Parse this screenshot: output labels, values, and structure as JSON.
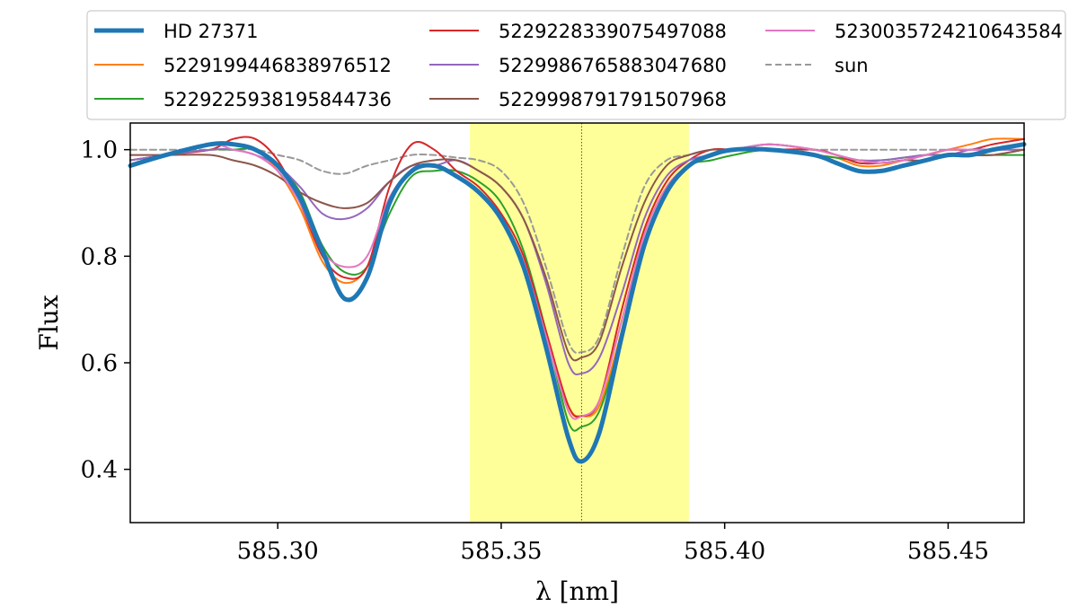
{
  "chart_data": {
    "type": "line",
    "title": "",
    "xlabel": "λ [nm]",
    "ylabel": "Flux",
    "xlim": [
      585.267,
      585.467
    ],
    "ylim": [
      0.3,
      1.05
    ],
    "xticks": [
      585.3,
      585.35,
      585.4,
      585.45
    ],
    "xtick_labels": [
      "585.30",
      "585.35",
      "585.40",
      "585.45"
    ],
    "yticks": [
      0.4,
      0.6,
      0.8,
      1.0
    ],
    "ytick_labels": [
      "0.4",
      "0.6",
      "0.8",
      "1.0"
    ],
    "grid": false,
    "legend_position": "top",
    "highlight_band": {
      "x0": 585.343,
      "x1": 585.392,
      "color": "#ffff99"
    },
    "center_line_x": 585.368,
    "x": [
      585.267,
      585.275,
      585.285,
      585.29,
      585.295,
      585.3,
      585.305,
      585.31,
      585.315,
      585.32,
      585.325,
      585.33,
      585.335,
      585.34,
      585.345,
      585.35,
      585.355,
      585.36,
      585.365,
      585.368,
      585.372,
      585.377,
      585.382,
      585.387,
      585.392,
      585.397,
      585.402,
      585.41,
      585.42,
      585.425,
      585.43,
      585.435,
      585.44,
      585.445,
      585.45,
      585.455,
      585.46,
      585.467
    ],
    "series": [
      {
        "name": "HD 27371",
        "color": "#1f77b4",
        "width": 5,
        "dash": "",
        "values": [
          0.97,
          0.99,
          1.01,
          1.01,
          1.0,
          0.97,
          0.91,
          0.81,
          0.72,
          0.76,
          0.9,
          0.96,
          0.97,
          0.95,
          0.92,
          0.87,
          0.78,
          0.63,
          0.46,
          0.415,
          0.47,
          0.65,
          0.82,
          0.92,
          0.97,
          0.99,
          1.0,
          1.0,
          0.99,
          0.975,
          0.96,
          0.96,
          0.97,
          0.98,
          0.99,
          0.99,
          1.0,
          1.01
        ]
      },
      {
        "name": "5229199446838976512",
        "color": "#ff7f0e",
        "width": 2,
        "dash": "",
        "values": [
          0.97,
          0.99,
          1.01,
          1.01,
          1.0,
          0.96,
          0.89,
          0.79,
          0.75,
          0.78,
          0.9,
          0.96,
          0.97,
          0.95,
          0.92,
          0.87,
          0.79,
          0.65,
          0.52,
          0.5,
          0.52,
          0.66,
          0.82,
          0.92,
          0.97,
          0.99,
          1.0,
          1.0,
          0.99,
          0.985,
          0.97,
          0.97,
          0.98,
          0.99,
          1.0,
          1.01,
          1.02,
          1.02
        ]
      },
      {
        "name": "5229225938195844736",
        "color": "#2ca02c",
        "width": 2,
        "dash": "",
        "values": [
          0.98,
          0.99,
          1.0,
          1.0,
          1.0,
          0.97,
          0.92,
          0.82,
          0.77,
          0.78,
          0.88,
          0.95,
          0.96,
          0.96,
          0.94,
          0.9,
          0.81,
          0.66,
          0.49,
          0.48,
          0.51,
          0.65,
          0.82,
          0.92,
          0.97,
          0.98,
          0.99,
          1.0,
          0.99,
          0.985,
          0.98,
          0.98,
          0.985,
          0.99,
          0.99,
          0.99,
          0.99,
          0.99
        ]
      },
      {
        "name": "5229228339075497088",
        "color": "#d62728",
        "width": 2,
        "dash": "",
        "values": [
          0.98,
          0.99,
          1.0,
          1.02,
          1.02,
          0.98,
          0.9,
          0.8,
          0.76,
          0.78,
          0.93,
          1.01,
          1.0,
          0.96,
          0.93,
          0.88,
          0.8,
          0.66,
          0.52,
          0.5,
          0.53,
          0.7,
          0.85,
          0.94,
          0.98,
          1.0,
          1.0,
          1.0,
          1.0,
          0.99,
          0.975,
          0.975,
          0.98,
          0.99,
          1.0,
          1.0,
          1.01,
          1.02
        ]
      },
      {
        "name": "5229986765883047680",
        "color": "#9467bd",
        "width": 2,
        "dash": "",
        "values": [
          0.98,
          0.99,
          1.0,
          1.0,
          0.99,
          0.97,
          0.93,
          0.88,
          0.87,
          0.89,
          0.94,
          0.97,
          0.97,
          0.98,
          0.96,
          0.93,
          0.87,
          0.75,
          0.6,
          0.58,
          0.61,
          0.73,
          0.87,
          0.95,
          0.98,
          0.99,
          1.0,
          1.01,
          1.0,
          0.99,
          0.98,
          0.98,
          0.985,
          0.99,
          0.99,
          1.0,
          1.0,
          1.0
        ]
      },
      {
        "name": "5229998791791507968",
        "color": "#8c564b",
        "width": 2,
        "dash": "",
        "values": [
          0.99,
          0.99,
          0.99,
          0.98,
          0.97,
          0.95,
          0.92,
          0.9,
          0.89,
          0.9,
          0.94,
          0.97,
          0.98,
          0.98,
          0.96,
          0.93,
          0.87,
          0.76,
          0.62,
          0.61,
          0.64,
          0.78,
          0.9,
          0.97,
          0.99,
          1.0,
          1.0,
          1.01,
          1.0,
          0.99,
          0.98,
          0.975,
          0.98,
          0.98,
          0.99,
          0.99,
          0.99,
          1.0
        ]
      },
      {
        "name": "5230035724210643584",
        "color": "#e377c2",
        "width": 2,
        "dash": "",
        "values": [
          0.97,
          0.99,
          1.01,
          1.0,
          0.99,
          0.96,
          0.9,
          0.81,
          0.78,
          0.8,
          0.91,
          0.96,
          0.97,
          0.95,
          0.92,
          0.87,
          0.79,
          0.65,
          0.51,
          0.5,
          0.53,
          0.68,
          0.84,
          0.93,
          0.97,
          0.99,
          1.0,
          1.01,
          1.0,
          0.99,
          0.98,
          0.975,
          0.98,
          0.99,
          1.0,
          1.0,
          1.0,
          1.01
        ]
      },
      {
        "name": "sun",
        "color": "#999999",
        "width": 2,
        "dash": "7,4",
        "values": [
          1.0,
          1.0,
          1.0,
          1.0,
          1.0,
          0.99,
          0.98,
          0.96,
          0.955,
          0.97,
          0.98,
          0.99,
          0.99,
          0.985,
          0.98,
          0.96,
          0.9,
          0.78,
          0.64,
          0.62,
          0.65,
          0.8,
          0.93,
          0.98,
          0.99,
          1.0,
          1.0,
          1.0,
          1.0,
          1.0,
          1.0,
          1.0,
          1.0,
          1.0,
          1.0,
          1.0,
          1.0,
          1.0
        ]
      }
    ]
  }
}
